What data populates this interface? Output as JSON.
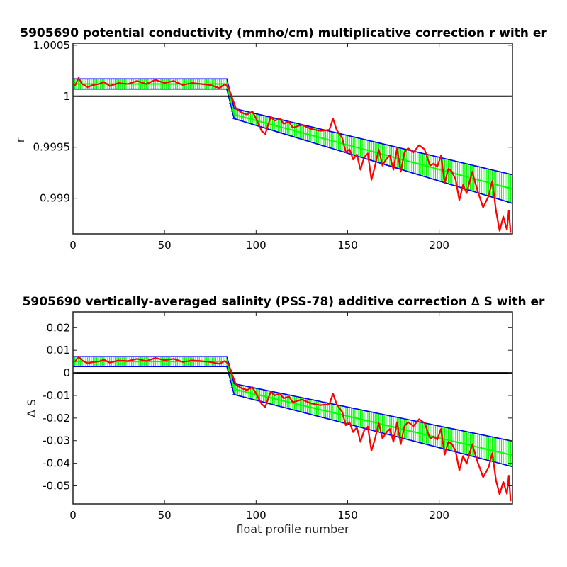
{
  "chart_data": [
    {
      "type": "line",
      "title": "5905690 potential conductivity (mmho/cm) multiplicative correction r with er",
      "xlabel": "",
      "ylabel": "r",
      "xlim": [
        0,
        240
      ],
      "ylim": [
        0.99865,
        1.00052
      ],
      "xticks": [
        0,
        50,
        100,
        150,
        200
      ],
      "yticks": [
        0.999,
        0.9995,
        1,
        1.0005
      ],
      "ytick_labels": [
        "0.999",
        "0.9995",
        "1",
        "1.0005"
      ],
      "reference_line": 1,
      "series": [
        {
          "role": "measured",
          "color": "#ff0000",
          "x": [
            1,
            3,
            5,
            8,
            11,
            14,
            17,
            20,
            25,
            30,
            35,
            40,
            45,
            50,
            55,
            60,
            65,
            70,
            75,
            80,
            83,
            85,
            87,
            89,
            92,
            95,
            98,
            100,
            103,
            105,
            108,
            110,
            113,
            115,
            118,
            120,
            125,
            130,
            135,
            140,
            142,
            144,
            147,
            149,
            151,
            153,
            155,
            157,
            159,
            161,
            163,
            165,
            167,
            169,
            171,
            173,
            175,
            177,
            179,
            181,
            183,
            186,
            189,
            192,
            195,
            197,
            199,
            201,
            203,
            205,
            207,
            209,
            211,
            213,
            215,
            218,
            221,
            224,
            227,
            229,
            231,
            233,
            235,
            237,
            238,
            239
          ],
          "y": [
            1.0001,
            1.00018,
            1.00012,
            1.00009,
            1.00011,
            1.00012,
            1.00014,
            1.0001,
            1.00013,
            1.00012,
            1.00015,
            1.00012,
            1.00016,
            1.00013,
            1.00015,
            1.00011,
            1.00013,
            1.00012,
            1.00011,
            1.00008,
            1.00012,
            1.00008,
            0.99998,
            0.99988,
            0.99984,
            0.99982,
            0.99985,
            0.99978,
            0.99966,
            0.99963,
            0.9998,
            0.99976,
            0.99978,
            0.99973,
            0.99975,
            0.99969,
            0.99972,
            0.99968,
            0.99966,
            0.99967,
            0.99978,
            0.99967,
            0.99959,
            0.99945,
            0.99948,
            0.99938,
            0.99943,
            0.99928,
            0.9994,
            0.99944,
            0.99918,
            0.99932,
            0.99948,
            0.99932,
            0.99938,
            0.99942,
            0.99928,
            0.99949,
            0.99926,
            0.99945,
            0.99949,
            0.99945,
            0.99952,
            0.99948,
            0.99932,
            0.99934,
            0.99931,
            0.99942,
            0.99915,
            0.99929,
            0.99926,
            0.99918,
            0.99898,
            0.99913,
            0.99905,
            0.99926,
            0.99907,
            0.99891,
            0.99902,
            0.99917,
            0.99888,
            0.99868,
            0.99882,
            0.99869,
            0.99888,
            0.99866
          ]
        },
        {
          "role": "fit_mean",
          "color": "#00ff00",
          "x": [
            0,
            84,
            88,
            240
          ],
          "y": [
            1.00012,
            1.00012,
            0.99982,
            0.99909
          ]
        },
        {
          "role": "error_upper",
          "color": "#0000ff",
          "x": [
            0,
            84,
            88,
            240
          ],
          "y": [
            1.00017,
            1.00017,
            0.99988,
            0.99923
          ]
        },
        {
          "role": "error_lower",
          "color": "#0000ff",
          "x": [
            0,
            84,
            88,
            240
          ],
          "y": [
            1.00007,
            1.00007,
            0.99978,
            0.99895
          ]
        }
      ]
    },
    {
      "type": "line",
      "title": "5905690 vertically-averaged salinity (PSS-78) additive correction ∆ S with er",
      "xlabel": "float profile number",
      "ylabel": "∆ S",
      "xlim": [
        0,
        240
      ],
      "ylim": [
        -0.058,
        0.027
      ],
      "xticks": [
        0,
        50,
        100,
        150,
        200
      ],
      "yticks": [
        0.02,
        0.01,
        0,
        -0.01,
        -0.02,
        -0.03,
        -0.04,
        -0.05
      ],
      "ytick_labels": [
        "0.02",
        "0.01",
        "0",
        "-0.01",
        "-0.02",
        "-0.03",
        "-0.04",
        "-0.05"
      ],
      "reference_line": 0,
      "series": [
        {
          "role": "measured",
          "color": "#ff0000",
          "x": [
            1,
            3,
            5,
            8,
            11,
            14,
            17,
            20,
            25,
            30,
            35,
            40,
            45,
            50,
            55,
            60,
            65,
            70,
            75,
            80,
            83,
            85,
            87,
            89,
            92,
            95,
            98,
            100,
            103,
            105,
            108,
            110,
            113,
            115,
            118,
            120,
            125,
            130,
            135,
            140,
            142,
            144,
            147,
            149,
            151,
            153,
            155,
            157,
            159,
            161,
            163,
            165,
            167,
            169,
            171,
            173,
            175,
            177,
            179,
            181,
            183,
            186,
            189,
            192,
            195,
            197,
            199,
            201,
            203,
            205,
            207,
            209,
            211,
            213,
            215,
            218,
            221,
            224,
            227,
            229,
            231,
            233,
            235,
            237,
            238,
            239
          ],
          "y": [
            0.0048,
            0.0072,
            0.0055,
            0.0042,
            0.0048,
            0.005,
            0.0058,
            0.0045,
            0.0055,
            0.0052,
            0.0062,
            0.0052,
            0.0066,
            0.0056,
            0.0062,
            0.0048,
            0.0055,
            0.0052,
            0.0048,
            0.004,
            0.0053,
            0.0038,
            -0.001,
            -0.0052,
            -0.0068,
            -0.0076,
            -0.0064,
            -0.0091,
            -0.0138,
            -0.0151,
            -0.0082,
            -0.01,
            -0.0091,
            -0.0113,
            -0.0105,
            -0.013,
            -0.0118,
            -0.0135,
            -0.0143,
            -0.0139,
            -0.0092,
            -0.0139,
            -0.0172,
            -0.0232,
            -0.0218,
            -0.0262,
            -0.0241,
            -0.0305,
            -0.0255,
            -0.0238,
            -0.0345,
            -0.029,
            -0.0222,
            -0.029,
            -0.0265,
            -0.0248,
            -0.0305,
            -0.0218,
            -0.0315,
            -0.0235,
            -0.0218,
            -0.0235,
            -0.0205,
            -0.0222,
            -0.029,
            -0.0282,
            -0.0295,
            -0.0248,
            -0.0362,
            -0.0305,
            -0.0315,
            -0.0348,
            -0.0432,
            -0.0368,
            -0.0402,
            -0.0315,
            -0.0395,
            -0.0462,
            -0.0418,
            -0.0355,
            -0.0475,
            -0.0538,
            -0.0482,
            -0.0535,
            -0.0455,
            -0.0568
          ]
        },
        {
          "role": "fit_mean",
          "color": "#00ff00",
          "x": [
            0,
            84,
            88,
            240
          ],
          "y": [
            0.005,
            0.005,
            -0.0072,
            -0.0365
          ]
        },
        {
          "role": "error_upper",
          "color": "#0000ff",
          "x": [
            0,
            84,
            88,
            240
          ],
          "y": [
            0.0072,
            0.0072,
            -0.0048,
            -0.0302
          ]
        },
        {
          "role": "error_lower",
          "color": "#0000ff",
          "x": [
            0,
            84,
            88,
            240
          ],
          "y": [
            0.0028,
            0.0028,
            -0.0096,
            -0.0415
          ]
        }
      ]
    }
  ]
}
